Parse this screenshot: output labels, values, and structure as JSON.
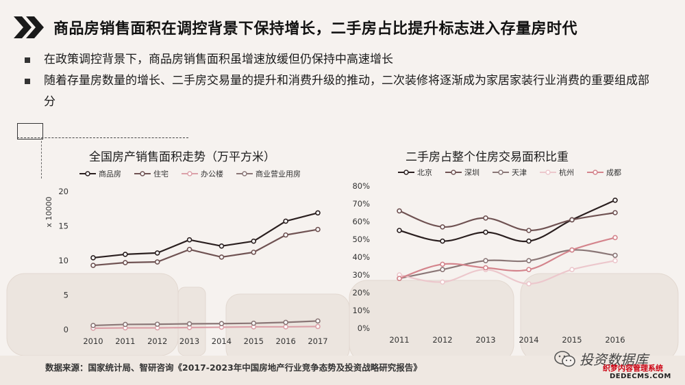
{
  "header": {
    "title": "商品房销售面积在调控背景下保持增长，二手房占比提升标志进入存量房时代"
  },
  "bullets": [
    "在政策调控背景下，商品房销售面积虽增速放缓但仍保持中高速增长",
    "随着存量房数量的增长、二手房交易量的提升和消费升级的推动，二次装修将逐渐成为家居家装行业消费的重要组成部分"
  ],
  "source": "数据来源：国家统计局、智研咨询《2017-2023年中国房地产行业竞争态势及投资战略研究报告》",
  "watermark": {
    "main": "投资数据库",
    "sub": "织梦内容管理系统",
    "domain": "DEDECMS.COM"
  },
  "colors": {
    "dark": "#2a1f1f",
    "brown": "#6f5252",
    "pink": "#dba0a8",
    "mauve": "#8a7676",
    "light_pink": "#ecc7cc",
    "rose": "#d4848c"
  },
  "chart_data": [
    {
      "type": "line",
      "title": "全国房产销售面积走势（万平方米）",
      "ylabel": "x 10000",
      "x": [
        "2010",
        "2011",
        "2012",
        "2013",
        "2014",
        "2015",
        "2016",
        "2017"
      ],
      "ylim": [
        0,
        20
      ],
      "yticks": [
        "0",
        "5",
        "10",
        "15",
        "20"
      ],
      "legend_position": "top",
      "series": [
        {
          "name": "商品房",
          "color": "#2a1f1f",
          "values": [
            10.4,
            10.9,
            11.1,
            13.0,
            12.1,
            12.8,
            15.7,
            16.9
          ]
        },
        {
          "name": "住宅",
          "color": "#6f5252",
          "values": [
            9.3,
            9.7,
            9.8,
            11.6,
            10.5,
            11.2,
            13.7,
            14.5
          ]
        },
        {
          "name": "办公楼",
          "color": "#dba0a8",
          "values": [
            0.2,
            0.25,
            0.25,
            0.3,
            0.35,
            0.4,
            0.4,
            0.45
          ]
        },
        {
          "name": "商业营业用房",
          "color": "#8a7676",
          "values": [
            0.6,
            0.75,
            0.78,
            0.84,
            0.87,
            0.92,
            1.05,
            1.25
          ]
        }
      ]
    },
    {
      "type": "line",
      "title": "二手房占整个住房交易面积比重",
      "x": [
        "2011",
        "2012",
        "2013",
        "2014",
        "2015",
        "2016"
      ],
      "ylim": [
        0,
        80
      ],
      "yticks": [
        "0%",
        "10%",
        "20%",
        "30%",
        "40%",
        "50%",
        "60%",
        "70%",
        "80%"
      ],
      "legend_position": "top",
      "series": [
        {
          "name": "北京",
          "color": "#2a1f1f",
          "values": [
            55,
            49,
            54,
            49,
            61,
            72
          ]
        },
        {
          "name": "深圳",
          "color": "#6f5252",
          "values": [
            66,
            57,
            62,
            55,
            61,
            65
          ]
        },
        {
          "name": "天津",
          "color": "#8a7676",
          "values": [
            28,
            33,
            38,
            38,
            44,
            41
          ]
        },
        {
          "name": "杭州",
          "color": "#ecc7cc",
          "values": [
            30,
            26,
            33,
            25,
            33,
            38
          ]
        },
        {
          "name": "成都",
          "color": "#d4848c",
          "values": [
            28,
            36,
            34,
            33,
            44,
            51
          ]
        }
      ]
    }
  ]
}
